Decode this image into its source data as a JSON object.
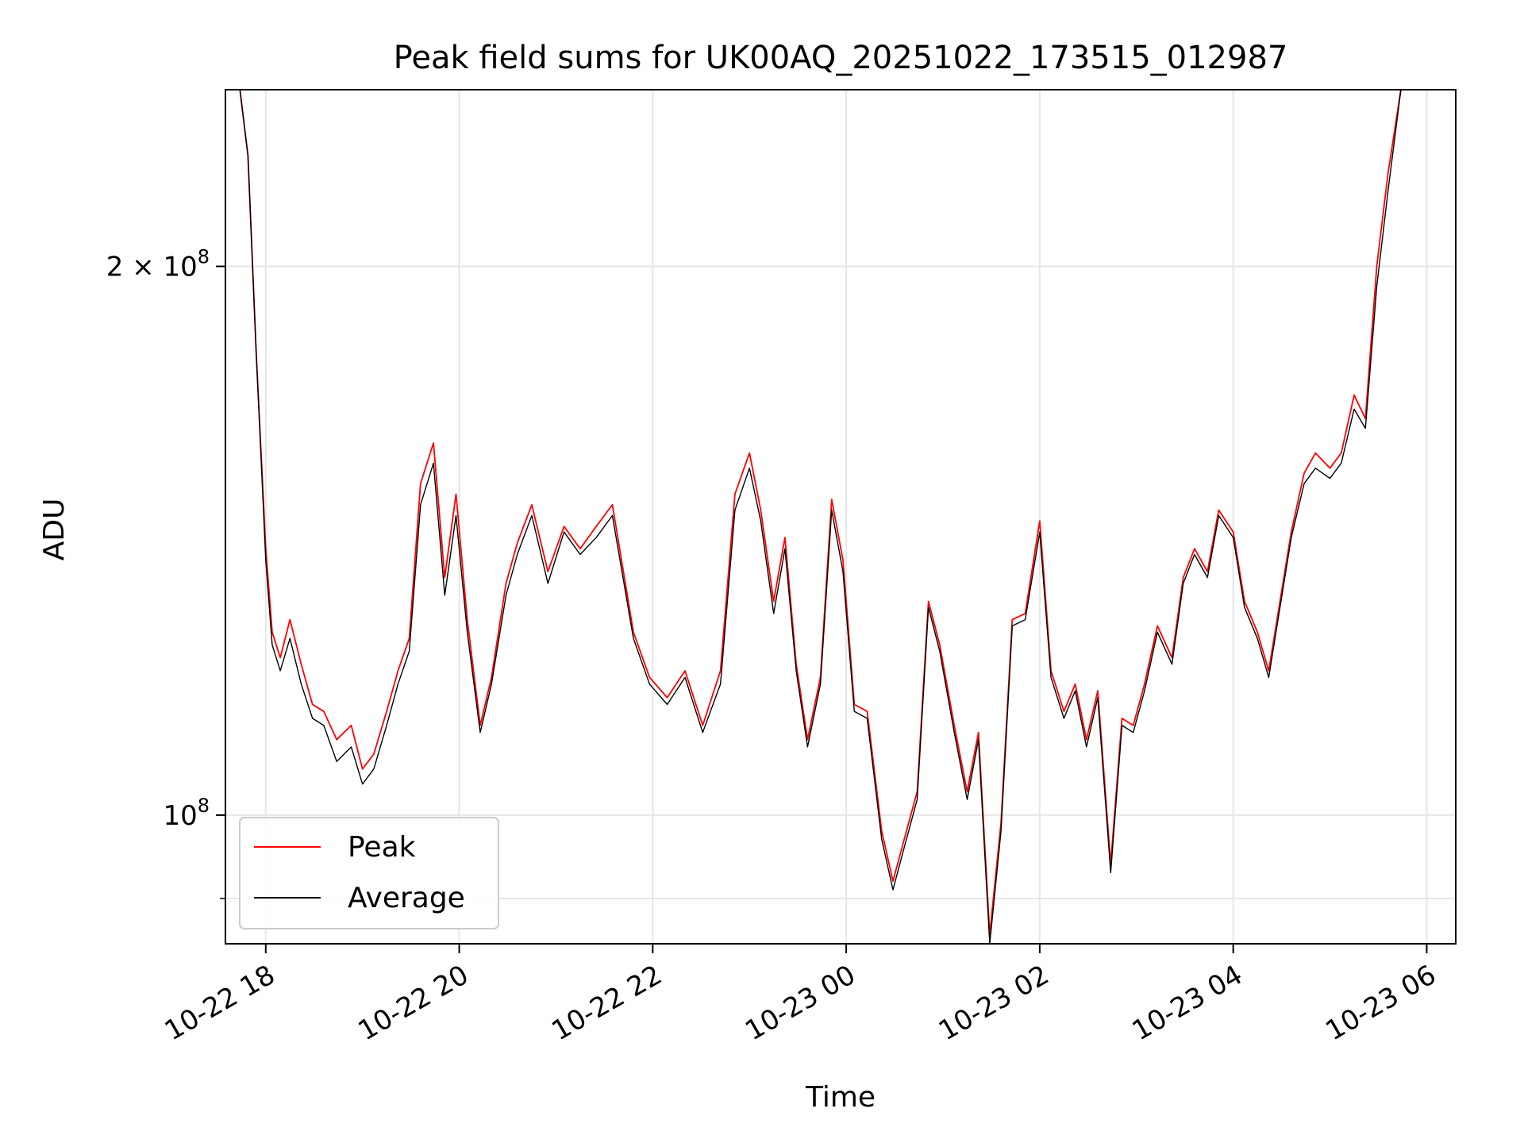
{
  "chart_data": {
    "type": "line",
    "title": "Peak field sums for UK00AQ_20251022_173515_012987",
    "xlabel": "Time",
    "ylabel": "ADU",
    "y_scale": "log",
    "xlim": [
      "2025-10-22 17:35",
      "2025-10-23 06:18"
    ],
    "ylim": [
      85000000,
      250000000
    ],
    "grid": true,
    "legend": "lower-left",
    "x_ticks": [
      {
        "t": "2025-10-22 18:00",
        "label": "10-22 18"
      },
      {
        "t": "2025-10-22 20:00",
        "label": "10-22 20"
      },
      {
        "t": "2025-10-22 22:00",
        "label": "10-22 22"
      },
      {
        "t": "2025-10-23 00:00",
        "label": "10-23 00"
      },
      {
        "t": "2025-10-23 02:00",
        "label": "10-23 02"
      },
      {
        "t": "2025-10-23 04:00",
        "label": "10-23 04"
      },
      {
        "t": "2025-10-23 06:00",
        "label": "10-23 06"
      }
    ],
    "y_major_ticks": [
      {
        "value": 100000000,
        "base": "10",
        "exp": "8"
      },
      {
        "value": 200000000,
        "base": "2 × 10",
        "exp": "8"
      }
    ],
    "y_minor_ticks": [
      90000000
    ],
    "x": [
      "2025-10-22 17:35",
      "2025-10-22 17:44",
      "2025-10-22 17:49",
      "2025-10-22 17:54",
      "2025-10-22 18:00",
      "2025-10-22 18:04",
      "2025-10-22 18:09",
      "2025-10-22 18:15",
      "2025-10-22 18:22",
      "2025-10-22 18:29",
      "2025-10-22 18:36",
      "2025-10-22 18:44",
      "2025-10-22 18:53",
      "2025-10-22 19:00",
      "2025-10-22 19:07",
      "2025-10-22 19:15",
      "2025-10-22 19:22",
      "2025-10-22 19:29",
      "2025-10-22 19:36",
      "2025-10-22 19:44",
      "2025-10-22 19:51",
      "2025-10-22 19:58",
      "2025-10-22 20:05",
      "2025-10-22 20:13",
      "2025-10-22 20:20",
      "2025-10-22 20:29",
      "2025-10-22 20:36",
      "2025-10-22 20:45",
      "2025-10-22 20:55",
      "2025-10-22 21:05",
      "2025-10-22 21:15",
      "2025-10-22 21:25",
      "2025-10-22 21:35",
      "2025-10-22 21:48",
      "2025-10-22 21:58",
      "2025-10-22 22:09",
      "2025-10-22 22:20",
      "2025-10-22 22:31",
      "2025-10-22 22:42",
      "2025-10-22 22:51",
      "2025-10-22 23:00",
      "2025-10-22 23:07",
      "2025-10-22 23:15",
      "2025-10-22 23:22",
      "2025-10-22 23:29",
      "2025-10-22 23:36",
      "2025-10-22 23:44",
      "2025-10-22 23:51",
      "2025-10-22 23:58",
      "2025-10-23 00:05",
      "2025-10-23 00:13",
      "2025-10-23 00:22",
      "2025-10-23 00:29",
      "2025-10-23 00:36",
      "2025-10-23 00:44",
      "2025-10-23 00:51",
      "2025-10-23 00:58",
      "2025-10-23 01:07",
      "2025-10-23 01:15",
      "2025-10-23 01:22",
      "2025-10-23 01:29",
      "2025-10-23 01:36",
      "2025-10-23 01:43",
      "2025-10-23 01:51",
      "2025-10-23 02:00",
      "2025-10-23 02:07",
      "2025-10-23 02:15",
      "2025-10-23 02:22",
      "2025-10-23 02:29",
      "2025-10-23 02:36",
      "2025-10-23 02:44",
      "2025-10-23 02:51",
      "2025-10-23 02:58",
      "2025-10-23 03:05",
      "2025-10-23 03:13",
      "2025-10-23 03:22",
      "2025-10-23 03:29",
      "2025-10-23 03:36",
      "2025-10-23 03:44",
      "2025-10-23 03:51",
      "2025-10-23 04:00",
      "2025-10-23 04:07",
      "2025-10-23 04:15",
      "2025-10-23 04:22",
      "2025-10-23 04:29",
      "2025-10-23 04:36",
      "2025-10-23 04:44",
      "2025-10-23 04:51",
      "2025-10-23 05:00",
      "2025-10-23 05:07",
      "2025-10-23 05:15",
      "2025-10-23 05:22",
      "2025-10-23 05:29",
      "2025-10-23 05:36",
      "2025-10-23 05:44",
      "2025-10-23 05:51",
      "2025-10-23 05:58",
      "2025-10-23 06:05",
      "2025-10-23 06:10",
      "2025-10-23 06:18"
    ],
    "series": [
      {
        "name": "Peak",
        "color": "#ff0000",
        "values": [
          250000000,
          250000000,
          230000000,
          180000000,
          140000000,
          126000000,
          122000000,
          128000000,
          121000000,
          115000000,
          114000000,
          110000000,
          112000000,
          106000000,
          108000000,
          114000000,
          120000000,
          125000000,
          152000000,
          160000000,
          135000000,
          150000000,
          128000000,
          112000000,
          119000000,
          134000000,
          141000000,
          148000000,
          136000000,
          144000000,
          140000000,
          144000000,
          148000000,
          126000000,
          119000000,
          116000000,
          120000000,
          112000000,
          120000000,
          150000000,
          158000000,
          147000000,
          131000000,
          142000000,
          121000000,
          110000000,
          119000000,
          149000000,
          138000000,
          115000000,
          114000000,
          98000000,
          92000000,
          97000000,
          103000000,
          131000000,
          124000000,
          112000000,
          103000000,
          111000000,
          86000000,
          99000000,
          128000000,
          129000000,
          145000000,
          120000000,
          114000000,
          118000000,
          110000000,
          117000000,
          94000000,
          113000000,
          112000000,
          118000000,
          127000000,
          122000000,
          135000000,
          140000000,
          136000000,
          147000000,
          143000000,
          131000000,
          126000000,
          120000000,
          131000000,
          143000000,
          154000000,
          158000000,
          155000000,
          158000000,
          170000000,
          165000000,
          200000000,
          225000000,
          250000000,
          250000000,
          250000000,
          250000000,
          250000000,
          250000000
        ]
      },
      {
        "name": "Average",
        "color": "#000000",
        "values": [
          250000000,
          250000000,
          230000000,
          180000000,
          138000000,
          124000000,
          120000000,
          125000000,
          118000000,
          113000000,
          112000000,
          107000000,
          109000000,
          104000000,
          106000000,
          112000000,
          118000000,
          123000000,
          148000000,
          156000000,
          132000000,
          146000000,
          126000000,
          111000000,
          118000000,
          132000000,
          139000000,
          146000000,
          134000000,
          143000000,
          139000000,
          142000000,
          146000000,
          125000000,
          118000000,
          115000000,
          119000000,
          111000000,
          118000000,
          147000000,
          155000000,
          145000000,
          129000000,
          140000000,
          120000000,
          109000000,
          118000000,
          147000000,
          136000000,
          114000000,
          113000000,
          97000000,
          91000000,
          96000000,
          102000000,
          130000000,
          123000000,
          111000000,
          102000000,
          110000000,
          85000000,
          98000000,
          127000000,
          128000000,
          143000000,
          119000000,
          113000000,
          117000000,
          109000000,
          116000000,
          93000000,
          112000000,
          111000000,
          117000000,
          126000000,
          121000000,
          134000000,
          139000000,
          135000000,
          146000000,
          142000000,
          130000000,
          125000000,
          119000000,
          130000000,
          142000000,
          152000000,
          155000000,
          153000000,
          156000000,
          167000000,
          163000000,
          195000000,
          220000000,
          250000000,
          250000000,
          250000000,
          250000000,
          250000000,
          250000000
        ]
      }
    ]
  }
}
